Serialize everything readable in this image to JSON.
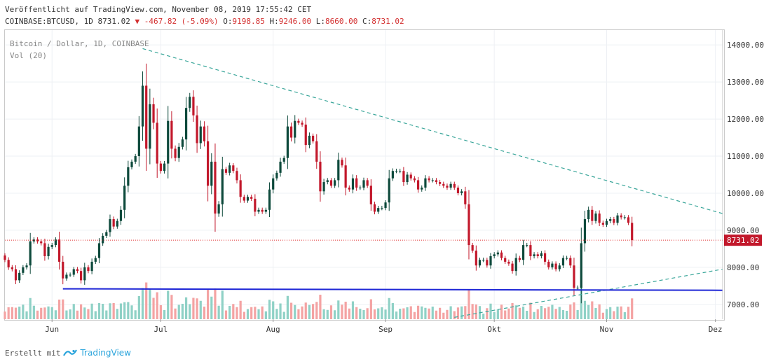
{
  "header": {
    "published": "Veröffentlicht auf TradingView.com, November 08, 2019 17:55:42 CET",
    "symbol": "COINBASE:BTCUSD, 1D",
    "last": "8731.02",
    "change_arrow": "▼",
    "change": "-467.82 (-5.09%)",
    "o_label": "O:",
    "o_value": "9198.85",
    "h_label": "H:",
    "h_value": "9246.00",
    "l_label": "L:",
    "l_value": "8660.00",
    "c_label": "C:",
    "c_value": "8731.02"
  },
  "legend": {
    "title": "Bitcoin / Dollar, 1D, COINBASE",
    "volume": "Vol (20)"
  },
  "footer": {
    "created_with": "Erstellt mit",
    "brand": "TradingView"
  },
  "colors": {
    "up": "#0e4a3c",
    "down": "#c2182b",
    "vol_up": "#8fd1c6",
    "vol_down": "#f4a3a3",
    "trendline": "#3aa69a",
    "support": "#1f27d6",
    "price_line": "#e03131",
    "grid": "#eef0f4"
  },
  "chart_data": {
    "type": "candlestick",
    "title": "Bitcoin / Dollar, 1D, COINBASE",
    "ylim": [
      6600,
      14400
    ],
    "y_ticks": [
      "7000.00",
      "8000.00",
      "9000.00",
      "10000.00",
      "11000.00",
      "12000.00",
      "13000.00",
      "14000.00"
    ],
    "x_labels": [
      "Jun",
      "Jul",
      "Aug",
      "Sep",
      "Okt",
      "Nov",
      "Dez"
    ],
    "x_label_dates": [
      "2019-06-01",
      "2019-07-01",
      "2019-08-01",
      "2019-09-01",
      "2019-10-01",
      "2019-11-01",
      "2019-12-01"
    ],
    "x_range": [
      "2019-05-19",
      "2019-12-03"
    ],
    "last_price": 8731.02,
    "last_price_label": "8731.02",
    "closes": [
      [
        "2019-05-19",
        8200
      ],
      [
        "2019-05-20",
        8000
      ],
      [
        "2019-05-21",
        7950
      ],
      [
        "2019-05-22",
        7650
      ],
      [
        "2019-05-23",
        7850
      ],
      [
        "2019-05-24",
        8000
      ],
      [
        "2019-05-25",
        8050
      ],
      [
        "2019-05-26",
        8700
      ],
      [
        "2019-05-27",
        8750
      ],
      [
        "2019-05-28",
        8700
      ],
      [
        "2019-05-29",
        8650
      ],
      [
        "2019-05-30",
        8300
      ],
      [
        "2019-05-31",
        8550
      ],
      [
        "2019-06-01",
        8600
      ],
      [
        "2019-06-02",
        8750
      ],
      [
        "2019-06-03",
        8150
      ],
      [
        "2019-06-04",
        7700
      ],
      [
        "2019-06-05",
        7800
      ],
      [
        "2019-06-06",
        7800
      ],
      [
        "2019-06-07",
        7950
      ],
      [
        "2019-06-08",
        7900
      ],
      [
        "2019-06-09",
        7650
      ],
      [
        "2019-06-10",
        8000
      ],
      [
        "2019-06-11",
        7900
      ],
      [
        "2019-06-12",
        8150
      ],
      [
        "2019-06-13",
        8250
      ],
      [
        "2019-06-14",
        8650
      ],
      [
        "2019-06-15",
        8850
      ],
      [
        "2019-06-16",
        8950
      ],
      [
        "2019-06-17",
        9300
      ],
      [
        "2019-06-18",
        9100
      ],
      [
        "2019-06-19",
        9250
      ],
      [
        "2019-06-20",
        9550
      ],
      [
        "2019-06-21",
        10200
      ],
      [
        "2019-06-22",
        10700
      ],
      [
        "2019-06-23",
        10850
      ],
      [
        "2019-06-24",
        11000
      ],
      [
        "2019-06-25",
        11800
      ],
      [
        "2019-06-26",
        12900
      ],
      [
        "2019-06-27",
        11200
      ],
      [
        "2019-06-28",
        12400
      ],
      [
        "2019-06-29",
        11900
      ],
      [
        "2019-06-30",
        10800
      ],
      [
        "2019-07-01",
        10600
      ],
      [
        "2019-07-02",
        10800
      ],
      [
        "2019-07-03",
        11950
      ],
      [
        "2019-07-04",
        11200
      ],
      [
        "2019-07-05",
        10950
      ],
      [
        "2019-07-06",
        11250
      ],
      [
        "2019-07-07",
        11450
      ],
      [
        "2019-07-08",
        12300
      ],
      [
        "2019-07-09",
        12600
      ],
      [
        "2019-07-10",
        12100
      ],
      [
        "2019-07-11",
        11350
      ],
      [
        "2019-07-12",
        11800
      ],
      [
        "2019-07-13",
        11400
      ],
      [
        "2019-07-14",
        10200
      ],
      [
        "2019-07-15",
        10850
      ],
      [
        "2019-07-16",
        9450
      ],
      [
        "2019-07-17",
        9700
      ],
      [
        "2019-07-18",
        10650
      ],
      [
        "2019-07-19",
        10550
      ],
      [
        "2019-07-20",
        10750
      ],
      [
        "2019-07-21",
        10600
      ],
      [
        "2019-07-22",
        10350
      ],
      [
        "2019-07-23",
        9900
      ],
      [
        "2019-07-24",
        9800
      ],
      [
        "2019-07-25",
        9900
      ],
      [
        "2019-07-26",
        9850
      ],
      [
        "2019-07-27",
        9500
      ],
      [
        "2019-07-28",
        9550
      ],
      [
        "2019-07-29",
        9500
      ],
      [
        "2019-07-30",
        9550
      ],
      [
        "2019-07-31",
        10100
      ],
      [
        "2019-08-01",
        10400
      ],
      [
        "2019-08-02",
        10550
      ],
      [
        "2019-08-03",
        10850
      ],
      [
        "2019-08-04",
        10950
      ],
      [
        "2019-08-05",
        11800
      ],
      [
        "2019-08-06",
        11500
      ],
      [
        "2019-08-07",
        11950
      ],
      [
        "2019-08-08",
        11900
      ],
      [
        "2019-08-09",
        11850
      ],
      [
        "2019-08-10",
        11300
      ],
      [
        "2019-08-11",
        11550
      ],
      [
        "2019-08-12",
        11400
      ],
      [
        "2019-08-13",
        10850
      ],
      [
        "2019-08-14",
        10050
      ],
      [
        "2019-08-15",
        10300
      ],
      [
        "2019-08-16",
        10350
      ],
      [
        "2019-08-17",
        10200
      ],
      [
        "2019-08-18",
        10350
      ],
      [
        "2019-08-19",
        10900
      ],
      [
        "2019-08-20",
        10750
      ],
      [
        "2019-08-21",
        10150
      ],
      [
        "2019-08-22",
        10100
      ],
      [
        "2019-08-23",
        10400
      ],
      [
        "2019-08-24",
        10150
      ],
      [
        "2019-08-25",
        10150
      ],
      [
        "2019-08-26",
        10350
      ],
      [
        "2019-08-27",
        10200
      ],
      [
        "2019-08-28",
        9700
      ],
      [
        "2019-08-29",
        9500
      ],
      [
        "2019-08-30",
        9600
      ],
      [
        "2019-08-31",
        9600
      ],
      [
        "2019-09-01",
        9750
      ],
      [
        "2019-09-02",
        10400
      ],
      [
        "2019-09-03",
        10600
      ],
      [
        "2019-09-04",
        10600
      ],
      [
        "2019-09-05",
        10600
      ],
      [
        "2019-09-06",
        10300
      ],
      [
        "2019-09-07",
        10500
      ],
      [
        "2019-09-08",
        10400
      ],
      [
        "2019-09-09",
        10350
      ],
      [
        "2019-09-10",
        10100
      ],
      [
        "2019-09-11",
        10150
      ],
      [
        "2019-09-12",
        10400
      ],
      [
        "2019-09-13",
        10350
      ],
      [
        "2019-09-14",
        10350
      ],
      [
        "2019-09-15",
        10300
      ],
      [
        "2019-09-16",
        10250
      ],
      [
        "2019-09-17",
        10200
      ],
      [
        "2019-09-18",
        10150
      ],
      [
        "2019-09-19",
        10250
      ],
      [
        "2019-09-20",
        10150
      ],
      [
        "2019-09-21",
        10000
      ],
      [
        "2019-09-22",
        10050
      ],
      [
        "2019-09-23",
        9700
      ],
      [
        "2019-09-24",
        8600
      ],
      [
        "2019-09-25",
        8450
      ],
      [
        "2019-09-26",
        8050
      ],
      [
        "2019-09-27",
        8200
      ],
      [
        "2019-09-28",
        8200
      ],
      [
        "2019-09-29",
        8050
      ],
      [
        "2019-09-30",
        8300
      ],
      [
        "2019-10-01",
        8350
      ],
      [
        "2019-10-02",
        8400
      ],
      [
        "2019-10-03",
        8250
      ],
      [
        "2019-10-04",
        8150
      ],
      [
        "2019-10-05",
        8100
      ],
      [
        "2019-10-06",
        7900
      ],
      [
        "2019-10-07",
        8250
      ],
      [
        "2019-10-08",
        8200
      ],
      [
        "2019-10-09",
        8600
      ],
      [
        "2019-10-10",
        8600
      ],
      [
        "2019-10-11",
        8300
      ],
      [
        "2019-10-12",
        8350
      ],
      [
        "2019-10-13",
        8300
      ],
      [
        "2019-10-14",
        8380
      ],
      [
        "2019-10-15",
        8150
      ],
      [
        "2019-10-16",
        8000
      ],
      [
        "2019-10-17",
        8100
      ],
      [
        "2019-10-18",
        7950
      ],
      [
        "2019-10-19",
        8050
      ],
      [
        "2019-10-20",
        8250
      ],
      [
        "2019-10-21",
        8250
      ],
      [
        "2019-10-22",
        8050
      ],
      [
        "2019-10-23",
        7450
      ],
      [
        "2019-10-24",
        7450
      ],
      [
        "2019-10-25",
        8650
      ],
      [
        "2019-10-26",
        9300
      ],
      [
        "2019-10-27",
        9550
      ],
      [
        "2019-10-28",
        9250
      ],
      [
        "2019-10-29",
        9450
      ],
      [
        "2019-10-30",
        9200
      ],
      [
        "2019-10-31",
        9150
      ],
      [
        "2019-11-01",
        9250
      ],
      [
        "2019-11-02",
        9300
      ],
      [
        "2019-11-03",
        9200
      ],
      [
        "2019-11-04",
        9400
      ],
      [
        "2019-11-05",
        9350
      ],
      [
        "2019-11-06",
        9350
      ],
      [
        "2019-11-07",
        9200
      ],
      [
        "2019-11-08",
        8731
      ]
    ],
    "trendlines": [
      {
        "name": "descending-resistance",
        "from": [
          "2019-06-26",
          13900
        ],
        "to": [
          "2019-12-03",
          9450
        ],
        "style": "dashed"
      },
      {
        "name": "rising-support",
        "from": [
          "2019-09-20",
          6650
        ],
        "to": [
          "2019-12-03",
          7950
        ],
        "style": "dashed"
      },
      {
        "name": "horizontal-support",
        "from": [
          "2019-06-04",
          7420
        ],
        "to": [
          "2019-12-03",
          7380
        ],
        "style": "solid"
      }
    ],
    "grid": true
  }
}
